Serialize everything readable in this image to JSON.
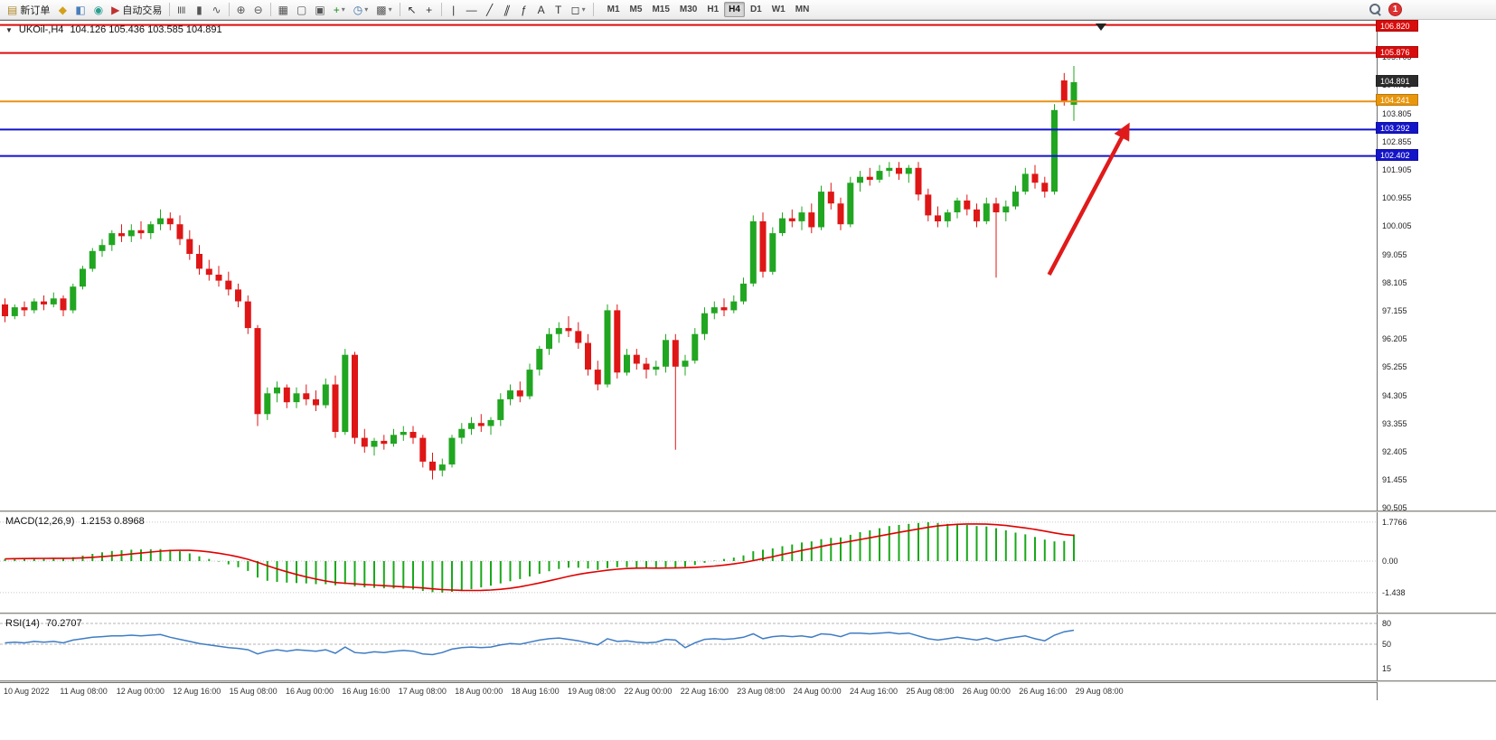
{
  "toolbar": {
    "new_order": "新订单",
    "autotrading": "自动交易",
    "timeframes": [
      "M1",
      "M5",
      "M15",
      "M30",
      "H1",
      "H4",
      "D1",
      "W1",
      "MN"
    ],
    "active_timeframe": "H4",
    "notification_count": "1",
    "items": [
      {
        "n": "new-order-button",
        "g": "▤",
        "c": "#b08a2e",
        "l": "新订单"
      },
      {
        "n": "market-watch-button",
        "g": "◆",
        "c": "#d4a017"
      },
      {
        "n": "data-window-button",
        "g": "◧",
        "c": "#4a7ebb"
      },
      {
        "n": "navigator-button",
        "g": "◉",
        "c": "#2a9d8f"
      },
      {
        "n": "autotrading-button",
        "g": "▶",
        "c": "#c03030",
        "l": "自动交易"
      },
      {
        "sep": true
      },
      {
        "n": "bar-chart-button",
        "g": "≣",
        "cls": "rot90",
        "c": "#555"
      },
      {
        "n": "candlestick-chart-button",
        "g": "▮",
        "c": "#555"
      },
      {
        "n": "line-chart-button",
        "g": "∿",
        "c": "#555"
      },
      {
        "sep": true
      },
      {
        "n": "zoom-in-button",
        "g": "⊕",
        "c": "#555"
      },
      {
        "n": "zoom-out-button",
        "g": "⊖",
        "c": "#555"
      },
      {
        "sep": true
      },
      {
        "n": "tile-windows-button",
        "g": "▦",
        "c": "#555"
      },
      {
        "n": "auto-arrange-button",
        "g": "▢",
        "c": "#555"
      },
      {
        "n": "cascade-button",
        "g": "▣",
        "c": "#555"
      },
      {
        "n": "indicators-button",
        "g": "+",
        "c": "#1d8a1d",
        "dd": true
      },
      {
        "n": "periods-button",
        "g": "◷",
        "c": "#3a6ea5",
        "dd": true
      },
      {
        "n": "templates-button",
        "g": "▩",
        "c": "#555",
        "dd": true
      },
      {
        "sep": true
      },
      {
        "n": "cursor-button",
        "g": "↖",
        "c": "#333"
      },
      {
        "n": "crosshair-button",
        "g": "+",
        "c": "#333"
      },
      {
        "sep": true
      },
      {
        "n": "vertical-line-button",
        "g": "|",
        "c": "#333"
      },
      {
        "n": "horizontal-line-button",
        "g": "—",
        "c": "#333"
      },
      {
        "n": "trendline-button",
        "g": "╱",
        "c": "#333"
      },
      {
        "n": "channel-button",
        "g": "∥",
        "cls": "skew",
        "c": "#333"
      },
      {
        "n": "fibonacci-button",
        "g": "ƒ",
        "c": "#333"
      },
      {
        "n": "text-button",
        "g": "A",
        "c": "#333"
      },
      {
        "n": "text-label-button",
        "g": "T",
        "c": "#333"
      },
      {
        "n": "shapes-button",
        "g": "◻",
        "c": "#333",
        "dd": true
      }
    ]
  },
  "chart_header": {
    "collapse_icon": "▼",
    "symbol_period": "UKOil-,H4",
    "ohlc": "104.126 105.436 103.585 104.891"
  },
  "price_axis": {
    "ticks": [
      "106.655",
      "105.705",
      "104.755",
      "103.805",
      "102.855",
      "101.905",
      "100.955",
      "100.005",
      "99.055",
      "98.105",
      "97.155",
      "96.205",
      "95.255",
      "94.305",
      "93.355",
      "92.405",
      "91.455",
      "90.505"
    ],
    "markers": [
      {
        "price": 106.82,
        "label": "106.820",
        "bg": "#d80c0c"
      },
      {
        "price": 105.876,
        "label": "105.876",
        "bg": "#d80c0c"
      },
      {
        "price": 104.891,
        "label": "104.891",
        "bg": "#2b2b2b"
      },
      {
        "price": 104.241,
        "label": "104.241",
        "bg": "#e8960c"
      },
      {
        "price": 103.292,
        "label": "103.292",
        "bg": "#1414c8"
      },
      {
        "price": 102.402,
        "label": "102.402",
        "bg": "#1414c8"
      }
    ]
  },
  "macd_panel": {
    "title": "MACD(12,26,9)",
    "values": "1.2153 0.8968",
    "axis_labels": [
      "1.7766",
      "0.00",
      "-1.438"
    ]
  },
  "rsi_panel": {
    "title": "RSI(14)",
    "value": "70.2707",
    "axis_labels": [
      "80",
      "50",
      "15"
    ]
  },
  "time_axis": [
    "10 Aug 2022",
    "11 Aug 08:00",
    "12 Aug 00:00",
    "12 Aug 16:00",
    "15 Aug 08:00",
    "16 Aug 00:00",
    "16 Aug 16:00",
    "17 Aug 08:00",
    "18 Aug 00:00",
    "18 Aug 16:00",
    "19 Aug 08:00",
    "22 Aug 00:00",
    "22 Aug 16:00",
    "23 Aug 08:00",
    "24 Aug 00:00",
    "24 Aug 16:00",
    "25 Aug 08:00",
    "26 Aug 00:00",
    "26 Aug 16:00",
    "29 Aug 08:00"
  ],
  "chart_data": {
    "type": "candlestick",
    "symbol": "UKOil-",
    "period": "H4",
    "title": "UKOil-,H4 104.126 105.436 103.585 104.891",
    "current_bar": {
      "open": 104.126,
      "high": 105.436,
      "low": 103.585,
      "close": 104.891
    },
    "y_axis_range": [
      90.42,
      106.96
    ],
    "colors": {
      "up": "#21a621",
      "down": "#df1616",
      "level_red": "#dd0c0c",
      "level_orange": "#e89114",
      "level_blue": "#1212cc"
    },
    "levels": [
      {
        "price": 106.82,
        "color": "#dd0c0c",
        "name": "resistance-line-106820"
      },
      {
        "price": 105.876,
        "color": "#dd0c0c",
        "name": "resistance-line-105876"
      },
      {
        "price": 104.241,
        "color": "#e89114",
        "name": "level-line-104241"
      },
      {
        "price": 103.292,
        "color": "#1212cc",
        "name": "support-line-103292"
      },
      {
        "price": 102.402,
        "color": "#1212cc",
        "name": "support-line-102402"
      }
    ],
    "candles": [
      [
        97.4,
        97.6,
        96.8,
        97.0
      ],
      [
        97.0,
        97.4,
        96.9,
        97.3
      ],
      [
        97.3,
        97.5,
        97.0,
        97.2
      ],
      [
        97.2,
        97.6,
        97.1,
        97.5
      ],
      [
        97.5,
        97.7,
        97.2,
        97.4
      ],
      [
        97.4,
        97.8,
        97.3,
        97.6
      ],
      [
        97.6,
        97.7,
        97.0,
        97.2
      ],
      [
        97.2,
        98.1,
        97.1,
        98.0
      ],
      [
        98.0,
        98.7,
        97.9,
        98.6
      ],
      [
        98.6,
        99.3,
        98.5,
        99.2
      ],
      [
        99.2,
        99.6,
        99.0,
        99.4
      ],
      [
        99.4,
        99.9,
        99.2,
        99.8
      ],
      [
        99.8,
        100.1,
        99.5,
        99.7
      ],
      [
        99.7,
        100.1,
        99.5,
        99.9
      ],
      [
        99.9,
        100.2,
        99.6,
        99.8
      ],
      [
        99.8,
        100.2,
        99.6,
        100.1
      ],
      [
        100.1,
        100.6,
        99.9,
        100.3
      ],
      [
        100.3,
        100.5,
        99.9,
        100.1
      ],
      [
        100.1,
        100.4,
        99.4,
        99.6
      ],
      [
        99.6,
        99.9,
        98.9,
        99.1
      ],
      [
        99.1,
        99.4,
        98.4,
        98.6
      ],
      [
        98.6,
        98.9,
        98.2,
        98.4
      ],
      [
        98.4,
        98.7,
        98.0,
        98.2
      ],
      [
        98.2,
        98.5,
        97.7,
        97.9
      ],
      [
        97.9,
        98.1,
        97.3,
        97.5
      ],
      [
        97.5,
        97.7,
        96.4,
        96.6
      ],
      [
        96.6,
        96.7,
        93.3,
        93.7
      ],
      [
        93.7,
        94.6,
        93.5,
        94.4
      ],
      [
        94.4,
        94.8,
        94.1,
        94.6
      ],
      [
        94.6,
        94.7,
        93.9,
        94.1
      ],
      [
        94.1,
        94.6,
        93.9,
        94.4
      ],
      [
        94.4,
        94.7,
        94.0,
        94.2
      ],
      [
        94.2,
        94.5,
        93.8,
        94.0
      ],
      [
        94.0,
        94.9,
        93.9,
        94.7
      ],
      [
        94.7,
        95.0,
        92.9,
        93.1
      ],
      [
        93.1,
        95.9,
        93.0,
        95.7
      ],
      [
        95.7,
        95.8,
        92.7,
        92.9
      ],
      [
        92.9,
        93.2,
        92.4,
        92.6
      ],
      [
        92.6,
        92.9,
        92.3,
        92.8
      ],
      [
        92.8,
        93.0,
        92.5,
        92.7
      ],
      [
        92.7,
        93.2,
        92.6,
        93.0
      ],
      [
        93.0,
        93.3,
        92.8,
        93.1
      ],
      [
        93.1,
        93.3,
        92.7,
        92.9
      ],
      [
        92.9,
        93.0,
        91.9,
        92.1
      ],
      [
        92.1,
        92.4,
        91.5,
        91.8
      ],
      [
        91.8,
        92.2,
        91.6,
        92.0
      ],
      [
        92.0,
        93.0,
        91.9,
        92.9
      ],
      [
        92.9,
        93.4,
        92.7,
        93.2
      ],
      [
        93.2,
        93.6,
        93.0,
        93.4
      ],
      [
        93.4,
        93.7,
        93.1,
        93.3
      ],
      [
        93.3,
        93.6,
        93.0,
        93.5
      ],
      [
        93.5,
        94.4,
        93.3,
        94.2
      ],
      [
        94.2,
        94.7,
        94.0,
        94.5
      ],
      [
        94.5,
        94.8,
        94.1,
        94.3
      ],
      [
        94.3,
        95.4,
        94.2,
        95.2
      ],
      [
        95.2,
        96.0,
        95.0,
        95.9
      ],
      [
        95.9,
        96.6,
        95.7,
        96.4
      ],
      [
        96.4,
        96.8,
        96.1,
        96.6
      ],
      [
        96.6,
        97.0,
        96.3,
        96.5
      ],
      [
        96.5,
        96.8,
        95.9,
        96.1
      ],
      [
        96.1,
        96.4,
        95.0,
        95.2
      ],
      [
        95.2,
        95.5,
        94.5,
        94.7
      ],
      [
        94.7,
        97.4,
        94.6,
        97.2
      ],
      [
        97.2,
        97.4,
        94.9,
        95.1
      ],
      [
        95.1,
        95.9,
        95.0,
        95.7
      ],
      [
        95.7,
        95.9,
        95.2,
        95.4
      ],
      [
        95.4,
        95.6,
        94.9,
        95.2
      ],
      [
        95.2,
        95.5,
        95.0,
        95.3
      ],
      [
        95.3,
        96.4,
        95.1,
        96.2
      ],
      [
        96.2,
        96.4,
        92.5,
        95.3
      ],
      [
        95.3,
        95.7,
        95.0,
        95.5
      ],
      [
        95.5,
        96.6,
        95.4,
        96.4
      ],
      [
        96.4,
        97.3,
        96.2,
        97.1
      ],
      [
        97.1,
        97.5,
        96.9,
        97.3
      ],
      [
        97.3,
        97.6,
        97.0,
        97.2
      ],
      [
        97.2,
        97.7,
        97.1,
        97.5
      ],
      [
        97.5,
        98.3,
        97.4,
        98.1
      ],
      [
        98.1,
        100.4,
        98.0,
        100.2
      ],
      [
        100.2,
        100.5,
        98.3,
        98.5
      ],
      [
        98.5,
        100.0,
        98.4,
        99.8
      ],
      [
        99.8,
        100.5,
        99.7,
        100.3
      ],
      [
        100.3,
        100.6,
        100.0,
        100.2
      ],
      [
        100.2,
        100.7,
        99.9,
        100.5
      ],
      [
        100.5,
        100.8,
        99.8,
        100.0
      ],
      [
        100.0,
        101.4,
        99.9,
        101.2
      ],
      [
        101.2,
        101.5,
        100.6,
        100.8
      ],
      [
        100.8,
        101.0,
        99.9,
        100.1
      ],
      [
        100.1,
        101.7,
        100.0,
        101.5
      ],
      [
        101.5,
        101.9,
        101.2,
        101.7
      ],
      [
        101.7,
        102.0,
        101.4,
        101.6
      ],
      [
        101.6,
        102.1,
        101.5,
        101.9
      ],
      [
        101.9,
        102.2,
        101.7,
        102.0
      ],
      [
        102.0,
        102.2,
        101.6,
        101.8
      ],
      [
        101.8,
        102.1,
        101.5,
        102.0
      ],
      [
        102.0,
        102.2,
        100.9,
        101.1
      ],
      [
        101.1,
        101.3,
        100.2,
        100.4
      ],
      [
        100.4,
        100.7,
        100.0,
        100.2
      ],
      [
        100.2,
        100.6,
        100.0,
        100.5
      ],
      [
        100.5,
        101.0,
        100.3,
        100.9
      ],
      [
        100.9,
        101.1,
        100.4,
        100.6
      ],
      [
        100.6,
        100.8,
        100.0,
        100.2
      ],
      [
        100.2,
        101.0,
        100.1,
        100.8
      ],
      [
        100.8,
        101.0,
        98.3,
        100.5
      ],
      [
        100.5,
        100.9,
        100.2,
        100.7
      ],
      [
        100.7,
        101.4,
        100.6,
        101.2
      ],
      [
        101.2,
        102.0,
        101.1,
        101.8
      ],
      [
        101.8,
        102.1,
        101.3,
        101.5
      ],
      [
        101.5,
        101.7,
        101.0,
        101.2
      ],
      [
        101.2,
        104.15,
        101.1,
        103.95
      ],
      [
        104.95,
        105.2,
        104.1,
        104.25
      ],
      [
        104.126,
        105.436,
        103.585,
        104.891
      ]
    ],
    "macd": {
      "params": "12,26,9",
      "main_value": 1.2153,
      "signal_value": 0.8968,
      "range": [
        -1.438,
        1.7766
      ],
      "main": [
        0.1,
        0.12,
        0.13,
        0.12,
        0.14,
        0.15,
        0.13,
        0.18,
        0.25,
        0.33,
        0.4,
        0.46,
        0.5,
        0.52,
        0.53,
        0.54,
        0.55,
        0.52,
        0.45,
        0.35,
        0.22,
        0.1,
        -0.02,
        -0.15,
        -0.28,
        -0.45,
        -0.75,
        -0.9,
        -0.95,
        -0.98,
        -1.0,
        -1.02,
        -1.05,
        -1.05,
        -1.1,
        -1.05,
        -1.15,
        -1.2,
        -1.22,
        -1.24,
        -1.25,
        -1.26,
        -1.3,
        -1.36,
        -1.42,
        -1.438,
        -1.4,
        -1.35,
        -1.28,
        -1.2,
        -1.12,
        -1.02,
        -0.92,
        -0.82,
        -0.7,
        -0.58,
        -0.46,
        -0.36,
        -0.3,
        -0.3,
        -0.34,
        -0.4,
        -0.32,
        -0.28,
        -0.28,
        -0.3,
        -0.33,
        -0.34,
        -0.28,
        -0.3,
        -0.26,
        -0.18,
        -0.08,
        0.02,
        0.1,
        0.16,
        0.26,
        0.45,
        0.52,
        0.58,
        0.68,
        0.76,
        0.85,
        0.9,
        1.0,
        1.06,
        1.08,
        1.2,
        1.32,
        1.4,
        1.5,
        1.6,
        1.65,
        1.7,
        1.74,
        1.7766,
        1.74,
        1.7,
        1.68,
        1.65,
        1.6,
        1.58,
        1.5,
        1.4,
        1.3,
        1.22,
        1.1,
        0.98,
        0.9,
        0.92,
        1.2153
      ]
    },
    "rsi": {
      "period": 14,
      "last_value": 70.2707,
      "level_lines": [
        80,
        50
      ],
      "values": [
        52,
        53,
        52,
        54,
        53,
        54,
        52,
        56,
        58,
        60,
        61,
        62,
        62,
        63,
        62,
        63,
        64,
        60,
        57,
        54,
        51,
        49,
        47,
        45,
        44,
        42,
        36,
        40,
        42,
        40,
        42,
        41,
        40,
        42,
        37,
        46,
        38,
        37,
        39,
        38,
        40,
        41,
        40,
        36,
        35,
        38,
        43,
        45,
        46,
        45,
        46,
        49,
        51,
        50,
        53,
        56,
        58,
        59,
        57,
        55,
        52,
        49,
        58,
        54,
        55,
        53,
        52,
        53,
        57,
        56,
        45,
        52,
        57,
        58,
        57,
        58,
        60,
        65,
        58,
        61,
        62,
        61,
        62,
        60,
        65,
        64,
        61,
        66,
        66,
        65,
        66,
        67,
        65,
        66,
        62,
        58,
        56,
        58,
        60,
        58,
        56,
        59,
        55,
        58,
        60,
        62,
        58,
        55,
        63,
        68,
        70.27
      ]
    },
    "arrow": {
      "from": {
        "bar": 107.5,
        "price": 98.4
      },
      "to": {
        "bar": 115.5,
        "price": 103.35
      },
      "color": "#e01a1a"
    }
  }
}
